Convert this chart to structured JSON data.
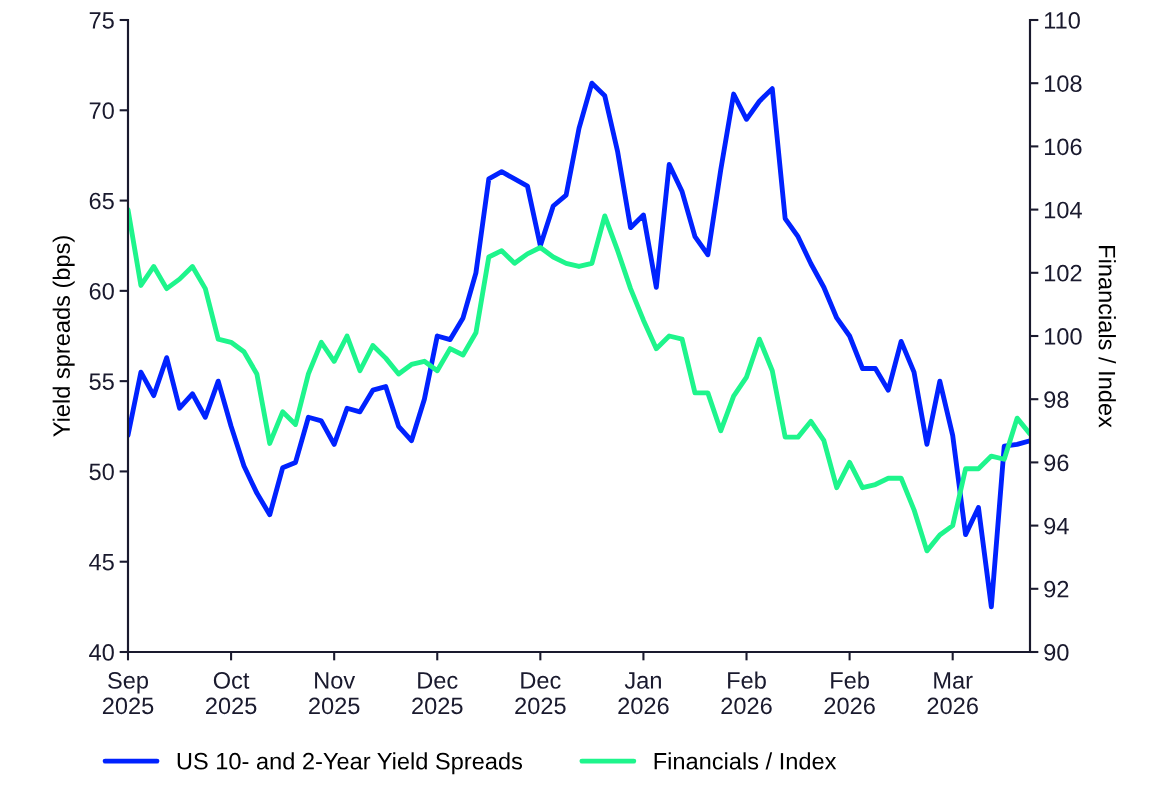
{
  "chart_data": {
    "type": "line",
    "ylabel": "Yield spreads (bps)",
    "y2label": "Financials / Index",
    "categories": [
      "Sep\n2025",
      null,
      null,
      null,
      null,
      null,
      null,
      null,
      "Oct\n2025",
      null,
      null,
      null,
      null,
      null,
      null,
      null,
      "Nov\n2025",
      null,
      null,
      null,
      null,
      null,
      null,
      null,
      "Dec\n2025",
      null,
      null,
      null,
      null,
      null,
      null,
      null,
      "Dec\n2025",
      null,
      null,
      null,
      null,
      null,
      null,
      null,
      "Jan\n2026",
      null,
      null,
      null,
      null,
      null,
      null,
      null,
      "Feb\n2026",
      null,
      null,
      null,
      null,
      null,
      null,
      null,
      "Feb\n2026",
      null,
      null,
      null,
      null,
      null,
      null,
      null,
      "Mar\n2026",
      null,
      null,
      null,
      null,
      null,
      null
    ],
    "series": [
      {
        "name": "US 10- and 2-Year Yield Spreads",
        "color": "#0022ff",
        "values": [
          52,
          55.5,
          54.2,
          56.3,
          53.5,
          54.3,
          53,
          55,
          52.5,
          50.3,
          48.8,
          47.6,
          50.2,
          50.5,
          53,
          52.8,
          51.5,
          53.5,
          53.3,
          54.5,
          54.7,
          52.5,
          51.7,
          54,
          57.5,
          57.3,
          58.5,
          61,
          66.2,
          66.6,
          66.2,
          65.8,
          62.5,
          64.7,
          65.3,
          69,
          71.5,
          70.8,
          67.7,
          63.5,
          64.2,
          60.2,
          67,
          65.5,
          63,
          62,
          66.7,
          70.9,
          69.5,
          70.5,
          71.2,
          64,
          63,
          61.5,
          60.2,
          58.5,
          57.5,
          55.7,
          55.7,
          54.5,
          57.2,
          55.5,
          51.5,
          55,
          52,
          46.5,
          48,
          42.5,
          51.4,
          51.5,
          51.7
        ]
      },
      {
        "name": "Financials / Index",
        "color": "#1ef58c",
        "axis": "y2",
        "values": [
          104,
          101.6,
          102.2,
          101.5,
          101.8,
          102.2,
          101.5,
          99.9,
          99.8,
          99.5,
          98.8,
          96.6,
          97.6,
          97.2,
          98.8,
          99.8,
          99.2,
          100,
          98.9,
          99.7,
          99.3,
          98.8,
          99.1,
          99.2,
          98.9,
          99.6,
          99.4,
          100.1,
          102.5,
          102.7,
          102.3,
          102.6,
          102.8,
          102.5,
          102.3,
          102.2,
          102.3,
          103.8,
          102.7,
          101.5,
          100.5,
          99.6,
          100,
          99.9,
          98.2,
          98.2,
          97,
          98.1,
          98.7,
          99.9,
          98.9,
          96.8,
          96.8,
          97.3,
          96.7,
          95.2,
          96,
          95.2,
          95.3,
          95.5,
          95.5,
          94.5,
          93.2,
          93.7,
          94,
          95.8,
          95.8,
          96.2,
          96.1,
          97.4,
          96.9
        ]
      }
    ],
    "ylim": [
      40,
      75
    ],
    "yticks": [
      40,
      45,
      50,
      55,
      60,
      65,
      70,
      75
    ],
    "y2lim": [
      90,
      110
    ],
    "y2ticks": [
      90,
      92,
      94,
      96,
      98,
      100,
      102,
      104,
      106,
      108,
      110
    ],
    "legend": "bottom",
    "grid": false,
    "marker": "none",
    "line_style": "solid"
  }
}
